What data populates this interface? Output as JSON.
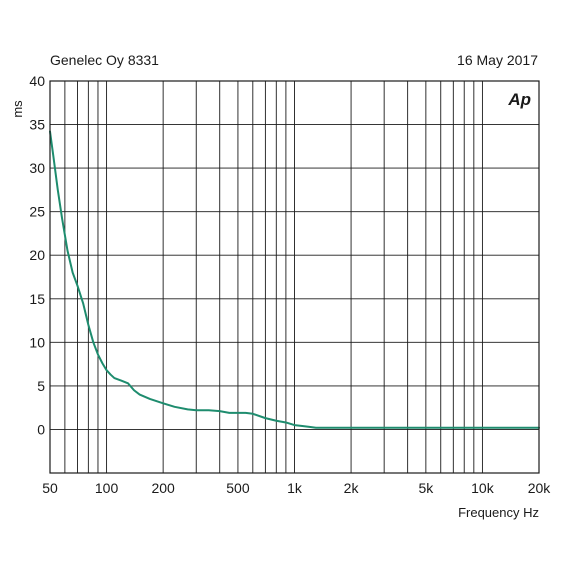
{
  "header": {
    "left": "Genelec Oy 8331",
    "right": "16 May 2017"
  },
  "logo_text": "Ap",
  "chart_data": {
    "type": "line",
    "title": "",
    "xlabel": "Frequency Hz",
    "ylabel": "ms",
    "xscale": "log",
    "xlim": [
      50,
      20000
    ],
    "ylim": [
      -5,
      40
    ],
    "grid": true,
    "x_ticks": [
      {
        "value": 50,
        "label": "50"
      },
      {
        "value": 100,
        "label": "100"
      },
      {
        "value": 200,
        "label": "200"
      },
      {
        "value": 500,
        "label": "500"
      },
      {
        "value": 1000,
        "label": "1k"
      },
      {
        "value": 2000,
        "label": "2k"
      },
      {
        "value": 5000,
        "label": "5k"
      },
      {
        "value": 10000,
        "label": "10k"
      },
      {
        "value": 20000,
        "label": "20k"
      }
    ],
    "y_ticks": [
      {
        "value": 40,
        "label": "40"
      },
      {
        "value": 35,
        "label": "35"
      },
      {
        "value": 30,
        "label": "30"
      },
      {
        "value": 25,
        "label": "25"
      },
      {
        "value": 20,
        "label": "20"
      },
      {
        "value": 15,
        "label": "15"
      },
      {
        "value": 10,
        "label": "10"
      },
      {
        "value": 5,
        "label": "5"
      },
      {
        "value": 0,
        "label": "0"
      }
    ],
    "series": [
      {
        "color": "#1e8c6e",
        "x": [
          50,
          52,
          55,
          58,
          62,
          66,
          70,
          75,
          80,
          85,
          90,
          95,
          100,
          105,
          110,
          120,
          130,
          140,
          150,
          170,
          200,
          230,
          270,
          300,
          350,
          400,
          450,
          500,
          550,
          600,
          700,
          800,
          900,
          1000,
          1100,
          1200,
          1300,
          1500,
          2000,
          5000,
          10000,
          20000
        ],
        "y": [
          34.2,
          31.5,
          27.5,
          24.2,
          20.5,
          18.0,
          16.5,
          14.5,
          12.0,
          10.0,
          8.6,
          7.6,
          6.8,
          6.3,
          5.9,
          5.6,
          5.3,
          4.5,
          4.0,
          3.5,
          3.0,
          2.6,
          2.3,
          2.2,
          2.2,
          2.1,
          1.9,
          1.9,
          1.9,
          1.8,
          1.3,
          1.0,
          0.8,
          0.5,
          0.4,
          0.3,
          0.2,
          0.2,
          0.2,
          0.2,
          0.2,
          0.2
        ]
      }
    ]
  }
}
